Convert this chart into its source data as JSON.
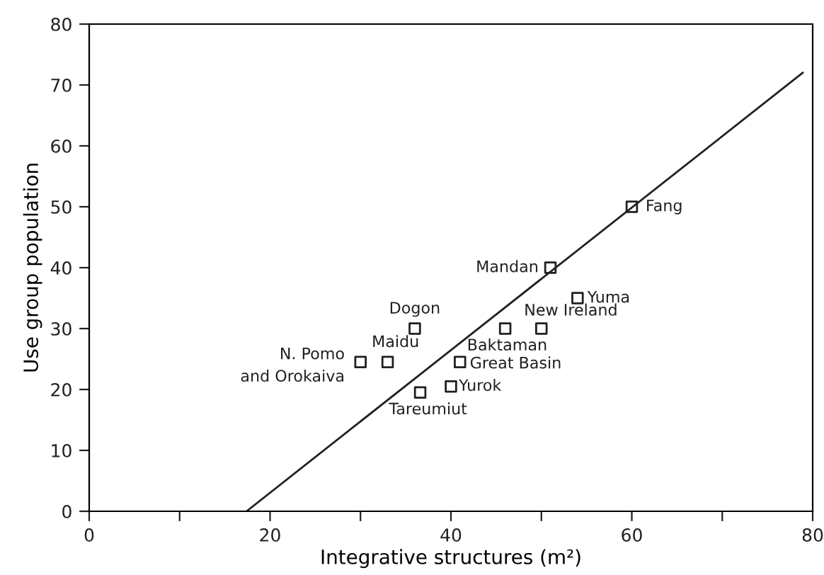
{
  "chart_data": {
    "type": "scatter",
    "xlabel": "Integrative structures (m²)",
    "ylabel": "Use group population",
    "xlim": [
      0,
      80
    ],
    "ylim": [
      0,
      80
    ],
    "xticks": [
      0,
      {
        "value": 10,
        "label": null
      },
      20,
      {
        "value": 30,
        "label": null
      },
      40,
      {
        "value": 50,
        "label": null
      },
      60,
      {
        "value": 70,
        "label": null
      },
      80
    ],
    "yticks": [
      0,
      10,
      20,
      30,
      40,
      50,
      60,
      70,
      80
    ],
    "grid": false,
    "legend": false,
    "series": [
      {
        "color": "#231f20",
        "marker": "square",
        "x": [
          60,
          51,
          54,
          50,
          46,
          36,
          33,
          30,
          41,
          40,
          36.6
        ],
        "values": [
          50,
          40,
          35,
          30,
          30,
          30,
          24.5,
          24.5,
          24.5,
          20.5,
          19.5
        ]
      },
      {
        "type": "line",
        "color": "#231f20",
        "line_style": "solid",
        "marker": "none",
        "x": [
          17.4,
          78.9
        ],
        "values": [
          0,
          72
        ]
      }
    ],
    "annotations": [
      {
        "text": "Fang",
        "x": 60,
        "y": 50
      },
      {
        "text": "Mandan",
        "x": 51,
        "y": 40
      },
      {
        "text": "Yuma",
        "x": 54,
        "y": 35
      },
      {
        "text": "New Ireland",
        "x": 50,
        "y": 30
      },
      {
        "text": "Baktaman",
        "x": 46,
        "y": 30
      },
      {
        "text": "Dogon",
        "x": 36,
        "y": 30
      },
      {
        "text": "Maidu",
        "x": 33,
        "y": 24.5
      },
      {
        "text": "N. Pomo\nand Orokaiva",
        "x": 30,
        "y": 24.5
      },
      {
        "text": "Great Basin",
        "x": 41,
        "y": 24.5
      },
      {
        "text": "Yurok",
        "x": 40,
        "y": 20.5
      },
      {
        "text": "Tareumiut",
        "x": 36.6,
        "y": 19.5
      }
    ]
  }
}
